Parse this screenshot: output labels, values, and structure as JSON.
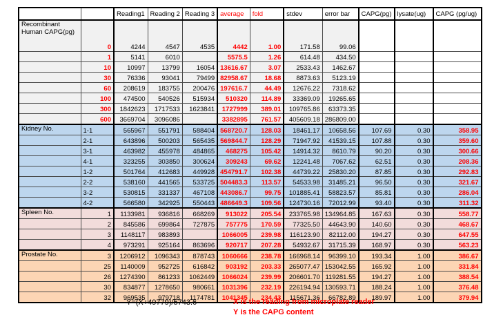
{
  "header": {
    "columns": [
      "",
      "",
      "Reading1",
      "Reading 2",
      "Reading 3",
      "average",
      "fold",
      "stdev",
      "error bar",
      "CAPG(pg)",
      "lysate(ug)",
      "CAPG (pg/ug)"
    ]
  },
  "colors": {
    "accent_red": "#FF0000",
    "recombinant_bg": "#F1F1F1",
    "kidney_bg": "#BDD6EE",
    "spleen_bg": "#F2DCDB",
    "prostate_bg": "#FCD5B4",
    "border": "#000000"
  },
  "table": {
    "sections": [
      {
        "label": "Recombinant Human CAPG(pg)",
        "bg": "#F1F1F1",
        "id_style": "red",
        "white_tail": true,
        "rows": [
          {
            "id": "0",
            "r1": "4244",
            "r2": "4547",
            "r3": "4535",
            "avg": "4442",
            "fold": "1.00",
            "stdev": "171.58",
            "err": "99.06",
            "capg": "",
            "lysate": "",
            "capg_ug": ""
          },
          {
            "id": "1",
            "r1": "5141",
            "r2": "6010",
            "r3": "",
            "avg": "5575.5",
            "fold": "1.26",
            "stdev": "614.48",
            "err": "434.50",
            "capg": "",
            "lysate": "",
            "capg_ug": ""
          },
          {
            "id": "10",
            "r1": "10997",
            "r2": "13799",
            "r3": "16054",
            "avg": "13616.67",
            "fold": "3.07",
            "stdev": "2533.43",
            "err": "1462.67",
            "capg": "",
            "lysate": "",
            "capg_ug": ""
          },
          {
            "id": "30",
            "r1": "76336",
            "r2": "93041",
            "r3": "79499",
            "avg": "82958.67",
            "fold": "18.68",
            "stdev": "8873.63",
            "err": "5123.19",
            "capg": "",
            "lysate": "",
            "capg_ug": ""
          },
          {
            "id": "60",
            "r1": "208619",
            "r2": "183755",
            "r3": "200476",
            "avg": "197616.7",
            "fold": "44.49",
            "stdev": "12676.22",
            "err": "7318.62",
            "capg": "",
            "lysate": "",
            "capg_ug": ""
          },
          {
            "id": "100",
            "r1": "474500",
            "r2": "540526",
            "r3": "515934",
            "avg": "510320",
            "fold": "114.89",
            "stdev": "33369.09",
            "err": "19265.65",
            "capg": "",
            "lysate": "",
            "capg_ug": ""
          },
          {
            "id": "300",
            "r1": "1842623",
            "r2": "1717533",
            "r3": "1623841",
            "avg": "1727999",
            "fold": "389.01",
            "stdev": "109765.86",
            "err": "63373.35",
            "capg": "",
            "lysate": "",
            "capg_ug": ""
          },
          {
            "id": "600",
            "r1": "3669704",
            "r2": "3096086",
            "r3": "",
            "avg": "3382895",
            "fold": "761.57",
            "stdev": "405609.18",
            "err": "286809.00",
            "capg": "",
            "lysate": "",
            "capg_ug": ""
          }
        ]
      },
      {
        "label": "Kidney No.",
        "bg": "#BDD6EE",
        "id_style": "left",
        "white_tail": false,
        "rows": [
          {
            "id": "1-1",
            "r1": "565967",
            "r2": "551791",
            "r3": "588404",
            "avg": "568720.7",
            "fold": "128.03",
            "stdev": "18461.17",
            "err": "10658.56",
            "capg": "107.69",
            "lysate": "0.30",
            "capg_ug": "358.95"
          },
          {
            "id": "2-1",
            "r1": "643896",
            "r2": "500203",
            "r3": "565435",
            "avg": "569844.7",
            "fold": "128.29",
            "stdev": "71947.92",
            "err": "41539.15",
            "capg": "107.88",
            "lysate": "0.30",
            "capg_ug": "359.60"
          },
          {
            "id": "3-1",
            "r1": "463982",
            "r2": "455978",
            "r3": "484865",
            "avg": "468275",
            "fold": "105.42",
            "stdev": "14914.32",
            "err": "8610.79",
            "capg": "90.20",
            "lysate": "0.30",
            "capg_ug": "300.66"
          },
          {
            "id": "4-1",
            "r1": "323255",
            "r2": "303850",
            "r3": "300624",
            "avg": "309243",
            "fold": "69.62",
            "stdev": "12241.48",
            "err": "7067.62",
            "capg": "62.51",
            "lysate": "0.30",
            "capg_ug": "208.36"
          },
          {
            "id": "1-2",
            "r1": "501764",
            "r2": "412683",
            "r3": "449928",
            "avg": "454791.7",
            "fold": "102.38",
            "stdev": "44739.22",
            "err": "25830.20",
            "capg": "87.85",
            "lysate": "0.30",
            "capg_ug": "292.83"
          },
          {
            "id": "2-2",
            "r1": "538160",
            "r2": "441565",
            "r3": "533725",
            "avg": "504483.3",
            "fold": "113.57",
            "stdev": "54533.98",
            "err": "31485.21",
            "capg": "96.50",
            "lysate": "0.30",
            "capg_ug": "321.67"
          },
          {
            "id": "3-2",
            "r1": "530815",
            "r2": "331337",
            "r3": "467108",
            "avg": "443086.7",
            "fold": "99.75",
            "stdev": "101885.41",
            "err": "58823.57",
            "capg": "85.81",
            "lysate": "0.30",
            "capg_ug": "286.04"
          },
          {
            "id": "4-2",
            "r1": "566580",
            "r2": "342925",
            "r3": "550443",
            "avg": "486649.3",
            "fold": "109.56",
            "stdev": "124730.16",
            "err": "72012.99",
            "capg": "93.40",
            "lysate": "0.30",
            "capg_ug": "311.32"
          }
        ]
      },
      {
        "label": "Spleen No.",
        "bg": "#F2DCDB",
        "id_style": "right",
        "white_tail": false,
        "rows": [
          {
            "id": "1",
            "r1": "1133981",
            "r2": "936816",
            "r3": "668269",
            "avg": "913022",
            "fold": "205.54",
            "stdev": "233765.98",
            "err": "134964.85",
            "capg": "167.63",
            "lysate": "0.30",
            "capg_ug": "558.77"
          },
          {
            "id": "2",
            "r1": "845586",
            "r2": "699864",
            "r3": "727875",
            "avg": "757775",
            "fold": "170.59",
            "stdev": "77325.50",
            "err": "44643.90",
            "capg": "140.60",
            "lysate": "0.30",
            "capg_ug": "468.67"
          },
          {
            "id": "3",
            "r1": "1148117",
            "r2": "983893",
            "r3": "",
            "avg": "1066005",
            "fold": "239.98",
            "stdev": "116123.90",
            "err": "82112.00",
            "capg": "194.27",
            "lysate": "0.30",
            "capg_ug": "647.55"
          },
          {
            "id": "4",
            "r1": "973291",
            "r2": "925164",
            "r3": "863696",
            "avg": "920717",
            "fold": "207.28",
            "stdev": "54932.67",
            "err": "31715.39",
            "capg": "168.97",
            "lysate": "0.30",
            "capg_ug": "563.23"
          }
        ]
      },
      {
        "label": "Prostate No.",
        "bg": "#FCD5B4",
        "id_style": "right",
        "white_tail": false,
        "rows": [
          {
            "id": "3",
            "r1": "1206912",
            "r2": "1096343",
            "r3": "878743",
            "avg": "1060666",
            "fold": "238.78",
            "stdev": "166968.14",
            "err": "96399.10",
            "capg": "193.34",
            "lysate": "1.00",
            "capg_ug": "386.67"
          },
          {
            "id": "25",
            "r1": "1140009",
            "r2": "952725",
            "r3": "616842",
            "avg": "903192",
            "fold": "203.33",
            "stdev": "265077.47",
            "err": "153042.55",
            "capg": "165.92",
            "lysate": "1.00",
            "capg_ug": "331.84"
          },
          {
            "id": "26",
            "r1": "1274390",
            "r2": "861233",
            "r3": "1062449",
            "avg": "1066024",
            "fold": "239.99",
            "stdev": "206601.70",
            "err": "119281.55",
            "capg": "194.27",
            "lysate": "1.00",
            "capg_ug": "388.54"
          },
          {
            "id": "30",
            "r1": "834877",
            "r2": "1278650",
            "r3": "980661",
            "avg": "1031396",
            "fold": "232.19",
            "stdev": "226194.94",
            "err": "130593.71",
            "capg": "188.24",
            "lysate": "1.00",
            "capg_ug": "376.48"
          },
          {
            "id": "32",
            "r1": "969535",
            "r2": "979718",
            "r3": "1174781",
            "avg": "1041345",
            "fold": "234.43",
            "stdev": "115671.36",
            "err": "66782.89",
            "capg": "189.97",
            "lysate": "1.00",
            "capg_ug": "379.94"
          }
        ]
      }
    ]
  },
  "footer": {
    "formula": "Y=(X+49779)/5743.6",
    "note_x": "X is the reading from microplate reader",
    "note_y": "Y is the CAPG content"
  }
}
